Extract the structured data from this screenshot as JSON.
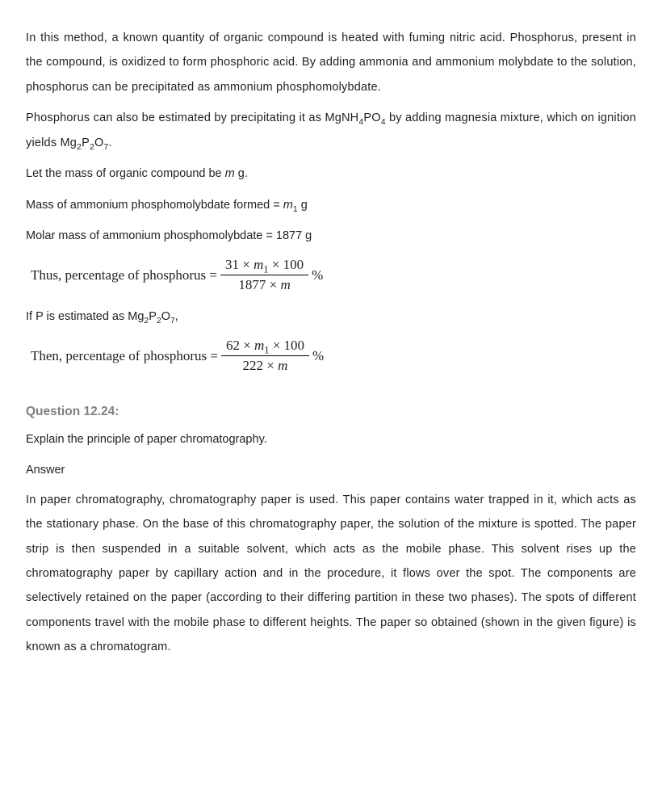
{
  "p1": "In this method, a known quantity of organic compound is heated with fuming nitric acid. Phosphorus, present in the compound, is oxidized to form phosphoric acid. By adding ammonia and ammonium molybdate to the solution, phosphorus can be precipitated as ammonium phosphomolybdate.",
  "p2_pre": "Phosphorus can also be estimated by precipitating it as MgNH",
  "p2_sub1": "4",
  "p2_mid1": "PO",
  "p2_sub2": "4",
  "p2_mid2": " by adding magnesia mixture, which on ignition yields Mg",
  "p2_sub3": "2",
  "p2_mid3": "P",
  "p2_sub4": "2",
  "p2_mid4": "O",
  "p2_sub5": "7",
  "p2_end": ".",
  "l1_pre": "Let the mass of organic compound be ",
  "l1_m": "m",
  "l1_post": " g.",
  "l2_pre": "Mass of ammonium phosphomolybdate formed = ",
  "l2_m": "m",
  "l2_sub": "1",
  "l2_post": " g",
  "l3": "Molar mass of ammonium phosphomolybdate = 1877 g",
  "f1_label": "Thus, percentage of phosphorus = ",
  "f1_num_a": "31 × ",
  "f1_num_m": "m",
  "f1_num_sub": "1",
  "f1_num_b": " × 100",
  "f1_den_a": "1877 × ",
  "f1_den_m": "m",
  "f1_pct": " %",
  "l4_pre": "If P is estimated as Mg",
  "l4_s1": "2",
  "l4_m1": "P",
  "l4_s2": "2",
  "l4_m2": "O",
  "l4_s3": "7",
  "l4_end": ",",
  "f2_label": "Then, percentage of phosphorus = ",
  "f2_num_a": "62 × ",
  "f2_num_m": "m",
  "f2_num_sub": "1",
  "f2_num_b": " × 100",
  "f2_den_a": "222 × ",
  "f2_den_m": "m",
  "f2_pct": " %",
  "q_title": "Question 12.24:",
  "q_text": "Explain the principle of paper chromatography.",
  "ans_label": "Answer",
  "ans_text": "In paper chromatography, chromatography paper is used. This paper contains water trapped in it, which acts as the stationary phase. On the base of this chromatography paper, the solution of the mixture is spotted. The paper strip is then suspended in a suitable solvent, which acts as the mobile phase. This solvent rises up the chromatography paper by capillary action and in the procedure, it flows over the spot. The components are selectively retained on the paper (according to their differing partition in these two phases). The spots of different components travel with the mobile phase to different heights. The paper so obtained (shown in the given figure) is known as a chromatogram.",
  "colors": {
    "text": "#222222",
    "question": "#7f7f7f",
    "bg": "#ffffff"
  },
  "fontsize_body": 14.5,
  "fontsize_formula": 17
}
